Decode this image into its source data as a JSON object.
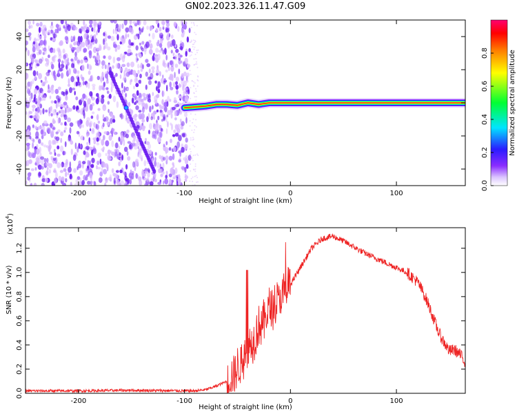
{
  "title": "GN02.2023.326.11.47.G09",
  "colors": {
    "dot_light": "#d9b8ff",
    "dot_mid": "#a56cff",
    "dot_dark": "#6a1cf0",
    "snr_line": "#ee2222"
  },
  "chart_data": [
    {
      "type": "heatmap",
      "xlabel": "Height of straight line (km)",
      "ylabel": "Frequency (Hz)",
      "xlim": [
        -250,
        165
      ],
      "ylim": [
        -50,
        50
      ],
      "xticks": [
        -200,
        -100,
        0,
        100
      ],
      "yticks": [
        -40,
        -20,
        0,
        20,
        40
      ],
      "noise_region_x": [
        -250,
        -95
      ],
      "signal_track": {
        "x": [
          -100,
          -90,
          -80,
          -70,
          -60,
          -50,
          -40,
          -30,
          -20,
          -10,
          0,
          50,
          100,
          165
        ],
        "y": [
          -3,
          -2.5,
          -2,
          -1,
          -1,
          -1.5,
          0,
          -1,
          0,
          0,
          0,
          0,
          0,
          0
        ]
      },
      "drifting_track": {
        "x": [
          -170,
          -155,
          -140,
          -128
        ],
        "y": [
          18,
          -3,
          -25,
          -42
        ]
      },
      "colorbar": {
        "label": "Normalized spectral amplitude",
        "range": [
          0,
          1
        ],
        "ticks": [
          "0.0",
          "0.2",
          "0.4",
          "0.6",
          "0.8"
        ]
      }
    },
    {
      "type": "line",
      "xlabel": "Height of straight line (km)",
      "ylabel": "SNR (10 * v/v)",
      "scale_note": "(x10",
      "scale_exp": "4",
      "scale_close": ")",
      "xlim": [
        -250,
        165
      ],
      "ylim": [
        0,
        1.37
      ],
      "xticks": [
        -200,
        -100,
        0,
        100
      ],
      "yticks": [
        "0.0",
        "0.2",
        "0.4",
        "0.6",
        "0.8",
        "1.0",
        "1.2"
      ],
      "series": [
        {
          "x": [
            -250,
            -200,
            -150,
            -100,
            -90,
            -80,
            -70,
            -60,
            -50,
            -45,
            -40,
            -35,
            -30,
            -25,
            -20,
            -15,
            -10,
            -5,
            0,
            10,
            20,
            30,
            40,
            50,
            60,
            70,
            80,
            90,
            100,
            110,
            120,
            125,
            130,
            135,
            140,
            145,
            150,
            155,
            160,
            165
          ],
          "y": [
            0.02,
            0.02,
            0.025,
            0.02,
            0.02,
            0.03,
            0.06,
            0.1,
            0.2,
            0.28,
            0.38,
            0.44,
            0.55,
            0.6,
            0.7,
            0.72,
            0.78,
            0.83,
            0.9,
            1.05,
            1.2,
            1.28,
            1.3,
            1.26,
            1.21,
            1.16,
            1.12,
            1.08,
            1.04,
            1.0,
            0.92,
            0.84,
            0.74,
            0.62,
            0.5,
            0.42,
            0.35,
            0.36,
            0.32,
            0.26
          ]
        }
      ]
    }
  ]
}
